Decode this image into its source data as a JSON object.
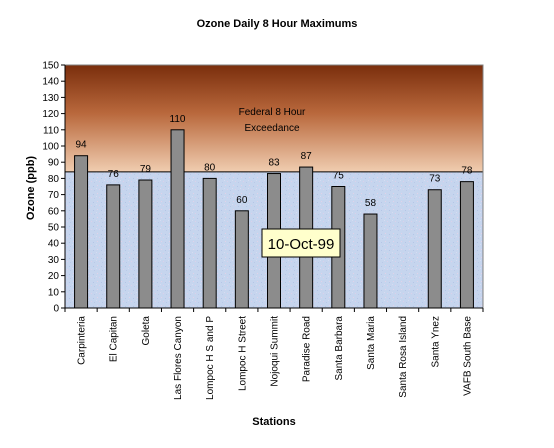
{
  "chart_data": {
    "type": "bar",
    "title": "Ozone Daily 8 Hour Maximums",
    "xlabel": "Stations",
    "ylabel": "Ozone (ppb)",
    "ylim": [
      0,
      150
    ],
    "yticks": [
      0,
      10,
      20,
      30,
      40,
      50,
      60,
      70,
      80,
      90,
      100,
      110,
      120,
      130,
      140,
      150
    ],
    "categories": [
      "Carpinteria",
      "El Capitan",
      "Goleta",
      "Las Flores Canyon",
      "Lompoc H S and P",
      "Lompoc H Street",
      "Nojoqui Summit",
      "Paradise Road",
      "Santa Barbara",
      "Santa Maria",
      "Santa Rosa Island",
      "Santa Ynez",
      "VAFB South Base"
    ],
    "values": [
      94,
      76,
      79,
      110,
      80,
      60,
      83,
      87,
      75,
      58,
      null,
      73,
      78
    ],
    "data_labels": [
      "94",
      "76",
      "79",
      "110",
      "80",
      "60",
      "83",
      "87",
      "75",
      "58",
      "",
      "73",
      "78"
    ],
    "threshold": 84,
    "exceedance_label_line1": "Federal 8 Hour",
    "exceedance_label_line2": "Exceedance",
    "date_label": "10-Oct-99",
    "grid": false,
    "legend": "none",
    "colors": {
      "bar_fill": "#8c8c8c",
      "bar_stroke": "#000000",
      "exceed_top": "#7a2e0c",
      "exceed_bottom": "#f0cdb0",
      "below_fill": "#c9d7ee",
      "date_box_fill": "#ffffcc"
    }
  }
}
